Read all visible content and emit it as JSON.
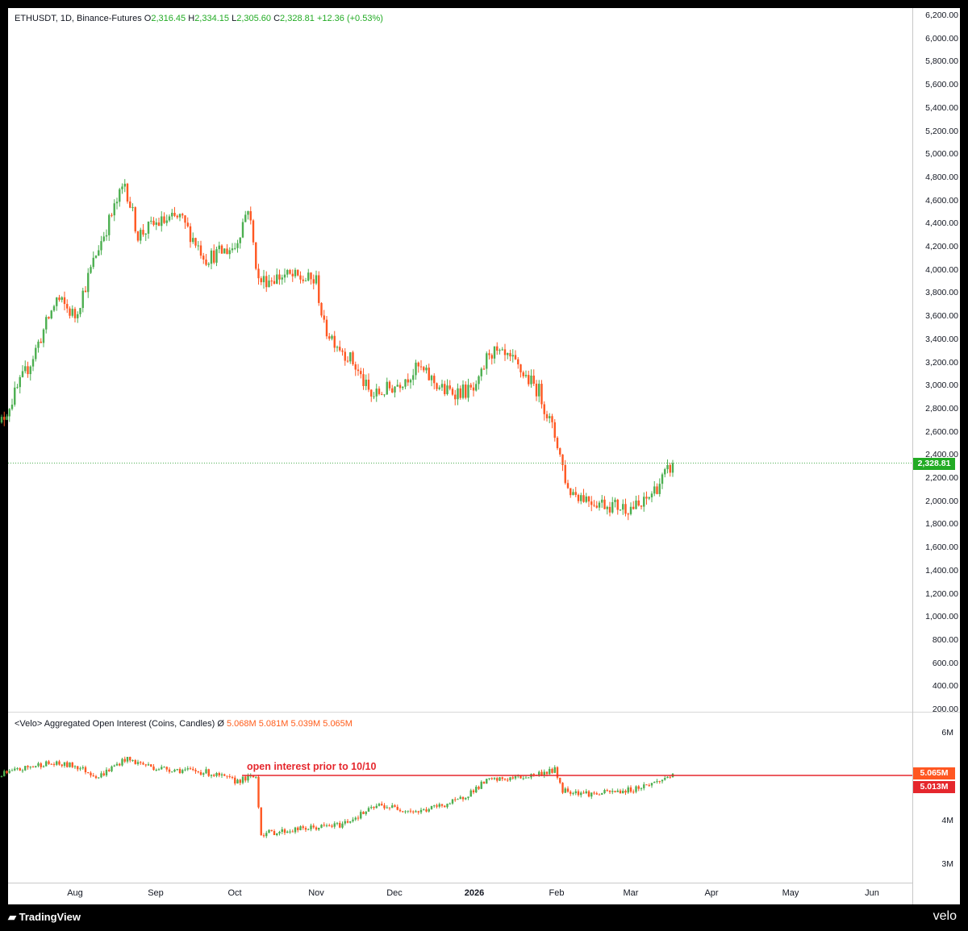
{
  "legend_price": {
    "symbol": "ETHUSDT, 1D, Binance-Futures",
    "o_label": "O",
    "o": "2,316.45",
    "h_label": "H",
    "h": "2,334.15",
    "l_label": "L",
    "l": "2,305.60",
    "c_label": "C",
    "c": "2,328.81",
    "change": "+12.36 (+0.53%)"
  },
  "legend_oi": {
    "name": "<Velo> Aggregated Open Interest (Coins, Candles)",
    "symbol": "Ø",
    "o": "5.068M",
    "h": "5.081M",
    "l": "5.039M",
    "c": "5.065M"
  },
  "annotation": "open interest prior to 10/10",
  "price_axis_labels": [
    "6,200.00",
    "6,000.00",
    "5,800.00",
    "5,600.00",
    "5,400.00",
    "5,200.00",
    "5,000.00",
    "4,800.00",
    "4,600.00",
    "4,400.00",
    "4,200.00",
    "4,000.00",
    "3,800.00",
    "3,600.00",
    "3,400.00",
    "3,200.00",
    "3,000.00",
    "2,800.00",
    "2,600.00",
    "2,400.00",
    "2,200.00",
    "2,000.00",
    "1,800.00",
    "1,600.00",
    "1,400.00",
    "1,200.00",
    "1,000.00",
    "800.00",
    "600.00",
    "400.00",
    "200.00"
  ],
  "oi_axis_labels": [
    "6M",
    "4M",
    "3M"
  ],
  "price_badge": "2,328.81",
  "oi_badge_1": "5.065M",
  "oi_badge_2": "5.013M",
  "x_labels": [
    "Aug",
    "Sep",
    "Oct",
    "Nov",
    "Dec",
    "2026",
    "Feb",
    "Mar",
    "Apr",
    "May",
    "Jun"
  ],
  "footer": {
    "tradingview": "TradingView",
    "velo": "velo"
  },
  "colors": {
    "up": "#4caf50",
    "down": "#ff5722",
    "current_line": "#4caf50",
    "annotation": "#e5272d"
  },
  "chart_data": [
    {
      "type": "candlestick",
      "title": "ETHUSDT, 1D, Binance-Futures",
      "ylim": [
        200,
        6200
      ],
      "series": [
        {
          "name": "ETHUSDT",
          "x": [
            "Jul 1",
            "Jul 15",
            "Jul 25",
            "Aug 1",
            "Aug 10",
            "Aug 20",
            "Aug 25",
            "Sep 1",
            "Sep 10",
            "Sep 20",
            "Oct 1",
            "Oct 6",
            "Oct 10",
            "Oct 20",
            "Nov 1",
            "Nov 4",
            "Nov 15",
            "Nov 22",
            "Dec 1",
            "Dec 10",
            "Dec 20",
            "Jan 1",
            "Jan 6",
            "Jan 15",
            "Jan 25",
            "Feb 1",
            "Feb 5",
            "Feb 15",
            "Feb 25",
            "Mar 5",
            "Mar 15",
            "Mar 17"
          ],
          "values": [
            2550,
            3200,
            3750,
            3600,
            4200,
            4750,
            4300,
            4400,
            4450,
            4100,
            4200,
            4550,
            3900,
            3950,
            3900,
            3500,
            3200,
            2900,
            3000,
            3150,
            2950,
            2950,
            3300,
            3200,
            2950,
            2500,
            2100,
            2000,
            1950,
            1950,
            2250,
            2328.81
          ]
        }
      ]
    },
    {
      "type": "candlestick",
      "title": "<Velo> Aggregated Open Interest (Coins, Candles)",
      "ylim": [
        2.5,
        6.3
      ],
      "reference_line": 5.013,
      "series": [
        {
          "name": "Open Interest",
          "x": [
            "Jul 1",
            "Jul 20",
            "Aug 1",
            "Aug 10",
            "Aug 20",
            "Sep 1",
            "Sep 20",
            "Oct 1",
            "Oct 9",
            "Oct 11",
            "Oct 25",
            "Nov 10",
            "Nov 25",
            "Dec 10",
            "Dec 25",
            "Jan 5",
            "Jan 20",
            "Jan 31",
            "Feb 3",
            "Feb 15",
            "Mar 1",
            "Mar 12",
            "Mar 17"
          ],
          "values": [
            5.0,
            5.3,
            5.25,
            5.0,
            5.4,
            5.2,
            5.1,
            4.9,
            5.0,
            3.7,
            3.8,
            3.9,
            4.35,
            4.2,
            4.45,
            4.9,
            5.0,
            5.15,
            4.7,
            4.6,
            4.7,
            4.9,
            5.065
          ]
        }
      ]
    }
  ]
}
